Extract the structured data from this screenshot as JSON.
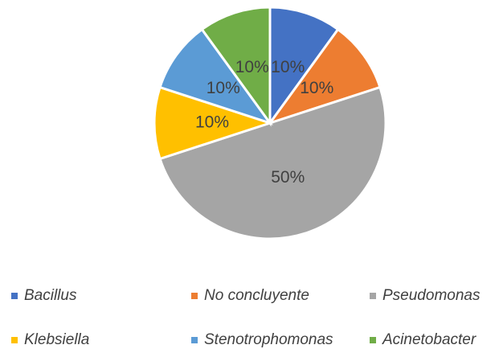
{
  "chart_data": {
    "type": "pie",
    "categories": [
      "Bacillus",
      "No concluyente",
      "Pseudomonas",
      "Klebsiella",
      "Stenotrophomonas",
      "Acinetobacter"
    ],
    "values": [
      10,
      10,
      50,
      10,
      10,
      10
    ],
    "value_labels": [
      "10%",
      "10%",
      "50%",
      "10%",
      "10%",
      "10%"
    ],
    "colors": [
      "#4472c4",
      "#ed7d31",
      "#a5a5a5",
      "#ffc000",
      "#5b9bd5",
      "#70ad47"
    ],
    "legend": "bottom"
  }
}
